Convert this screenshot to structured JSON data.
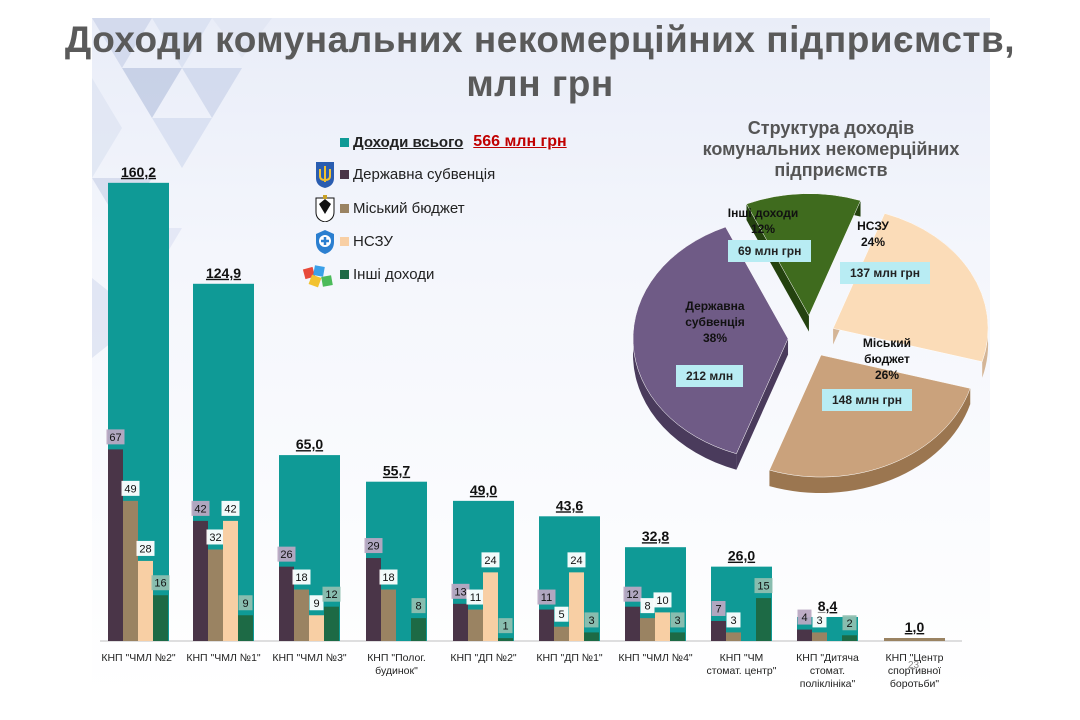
{
  "title_line1": "Доходи комунальних некомерційних підприємств,",
  "title_line2": "млн грн",
  "legend": {
    "total_label": "Доходи всього",
    "total_value": "566 млн грн",
    "items": [
      "Державна субвенція",
      "Міський бюджет",
      "НСЗУ",
      "Інші доходи"
    ]
  },
  "colors": {
    "total": "#0f9a96",
    "subvention": "#4a3548",
    "city": "#9a8362",
    "nszu": "#f8cfa4",
    "other": "#1d6a45",
    "subvention_label_bg": "#b9a8c2",
    "other_label_bg": "#8fbfb0"
  },
  "chart_data": [
    {
      "type": "bar",
      "categories": [
        "КНП \"ЧМЛ №2\"",
        "КНП \"ЧМЛ №1\"",
        "КНП \"ЧМЛ №3\"",
        "КНП \"Полог. будинок\"",
        "КНП \"ДП №2\"",
        "КНП \"ДП №1\"",
        "КНП \"ЧМЛ №4\"",
        "КНП \"ЧМ стомат. центр\"",
        "КНП \"Дитяча стомат. поліклініка\"",
        "КНП \"Центр спортивної боротьби\""
      ],
      "totals": [
        160.2,
        124.9,
        65.0,
        55.7,
        49.0,
        43.6,
        32.8,
        26.0,
        8.4,
        1.0
      ],
      "total_labels": [
        "160,2",
        "124,9",
        "65,0",
        "55,7",
        "49,0",
        "43,6",
        "32,8",
        "26,0",
        "8,4",
        "1,0"
      ],
      "series": [
        {
          "name": "Державна субвенція",
          "values": [
            67,
            42,
            26,
            29,
            13,
            11,
            12,
            7,
            4,
            null
          ]
        },
        {
          "name": "Міський бюджет",
          "values": [
            49,
            32,
            18,
            18,
            11,
            5,
            8,
            3,
            3,
            null
          ]
        },
        {
          "name": "НСЗУ",
          "values": [
            28,
            42,
            9,
            null,
            24,
            24,
            10,
            null,
            null,
            null
          ]
        },
        {
          "name": "Інші доходи",
          "values": [
            16,
            9,
            12,
            8,
            1,
            3,
            3,
            15,
            2,
            null
          ]
        }
      ]
    },
    {
      "type": "pie",
      "title": "Структура доходів комунальних некомерційних підприємств",
      "slices": [
        {
          "name": "Інші доходи",
          "percent": 12,
          "percent_label": "12%",
          "amount_label": "69 млн грн"
        },
        {
          "name": "НСЗУ",
          "percent": 24,
          "percent_label": "24%",
          "amount_label": "137 млн грн"
        },
        {
          "name": "Міський бюджет",
          "percent": 26,
          "percent_label": "26%",
          "amount_label": "148 млн грн"
        },
        {
          "name": "Державна субвенція",
          "percent": 38,
          "percent_label": "38%",
          "amount_label": "212 млн"
        }
      ]
    }
  ],
  "pie_text": {
    "other_name": "Інші доходи",
    "nszu_name": "НСЗУ",
    "city_name_1": "Міський",
    "city_name_2": "бюджет",
    "subv_name_1": "Державна",
    "subv_name_2": "субвенція"
  },
  "title_pie_lines": [
    "Структура доходів",
    "комунальних некомерційних",
    "підприємств"
  ],
  "page_number": "23"
}
